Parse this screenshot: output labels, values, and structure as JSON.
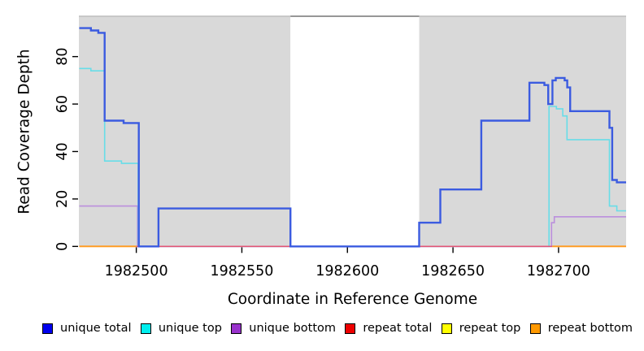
{
  "chart_data": {
    "type": "line",
    "subtype": "step-after-coverage-plot",
    "title": "",
    "xlabel": "Coordinate in Reference Genome",
    "ylabel": "Read Coverage Depth",
    "xlim": [
      1982472.8,
      1982732
    ],
    "ylim": [
      0,
      97
    ],
    "x_ticks": [
      1982500,
      1982550,
      1982600,
      1982650,
      1982700
    ],
    "y_ticks": [
      0,
      20,
      40,
      60,
      80
    ],
    "grid": false,
    "legend_position": "bottom",
    "background_regions": [
      {
        "name": "unique-region-left",
        "x0": 1982472.8,
        "x1": 1982573,
        "color": "#d9d9d9",
        "top_border": "#bdbdbd"
      },
      {
        "name": "repeat-region-gap",
        "x0": 1982573,
        "x1": 1982634,
        "color": "#ffffff",
        "top_border": "#757575"
      },
      {
        "name": "unique-region-right",
        "x0": 1982634,
        "x1": 1982732,
        "color": "#d9d9d9",
        "top_border": "#bdbdbd"
      }
    ],
    "series": [
      {
        "name": "unique total",
        "line_color": "#3b5be0",
        "legend_color": "#0000ee",
        "width": 2.4,
        "z": 5,
        "segments": [
          [
            [
              1982473,
              92
            ],
            [
              1982478.5,
              91
            ],
            [
              1982482,
              90
            ],
            [
              1982485,
              53
            ],
            [
              1982494,
              52
            ],
            [
              1982501.2,
              0
            ],
            [
              1982510.5,
              16
            ],
            [
              1982573,
              0
            ],
            [
              1982634,
              10
            ],
            [
              1982644,
              24
            ],
            [
              1982663.4,
              53
            ],
            [
              1982686.2,
              69
            ],
            [
              1982693.3,
              68
            ],
            [
              1982695.1,
              60
            ],
            [
              1982697.1,
              70
            ],
            [
              1982698.7,
              71
            ],
            [
              1982702.9,
              70
            ],
            [
              1982704.1,
              67
            ],
            [
              1982705.5,
              57
            ],
            [
              1982724.1,
              50
            ],
            [
              1982725.4,
              28
            ],
            [
              1982727.6,
              27
            ],
            [
              1982732,
              27
            ]
          ]
        ]
      },
      {
        "name": "unique top",
        "line_color": "#68dde8",
        "legend_color": "#00eeee",
        "width": 1.6,
        "z": 3,
        "segments": [
          [
            [
              1982473,
              75
            ],
            [
              1982478.5,
              74
            ],
            [
              1982485,
              36
            ],
            [
              1982493,
              35
            ],
            [
              1982500.9,
              0
            ],
            [
              1982695.5,
              59
            ],
            [
              1982699,
              58
            ],
            [
              1982702,
              55
            ],
            [
              1982704,
              45
            ],
            [
              1982724.1,
              17
            ],
            [
              1982727.6,
              15
            ],
            [
              1982732,
              15
            ]
          ]
        ]
      },
      {
        "name": "unique bottom",
        "line_color": "#bb8fdd",
        "legend_color": "#9933cc",
        "width": 1.6,
        "z": 2,
        "segments": [
          [
            [
              1982473,
              17
            ],
            [
              1982500.6,
              0
            ],
            [
              1982696.7,
              10
            ],
            [
              1982698,
              12.5
            ],
            [
              1982732,
              12.5
            ]
          ]
        ]
      },
      {
        "name": "repeat total",
        "line_color": "#e25677",
        "legend_color": "#ee0000",
        "width": 1.6,
        "z": 4,
        "segments": [
          [
            [
              1982500,
              0
            ],
            [
              1982697,
              0
            ]
          ]
        ]
      },
      {
        "name": "repeat top",
        "line_color": "#f2f20a",
        "legend_color": "#ffff00",
        "width": 1.4,
        "z": 1,
        "segments": []
      },
      {
        "name": "repeat bottom",
        "line_color": "#ff9d26",
        "legend_color": "#ff9900",
        "width": 2,
        "z": 6,
        "segments": [
          [
            [
              1982473,
              0
            ],
            [
              1982500,
              0
            ]
          ],
          [
            [
              1982697,
              0
            ],
            [
              1982732,
              0
            ]
          ]
        ]
      }
    ]
  }
}
